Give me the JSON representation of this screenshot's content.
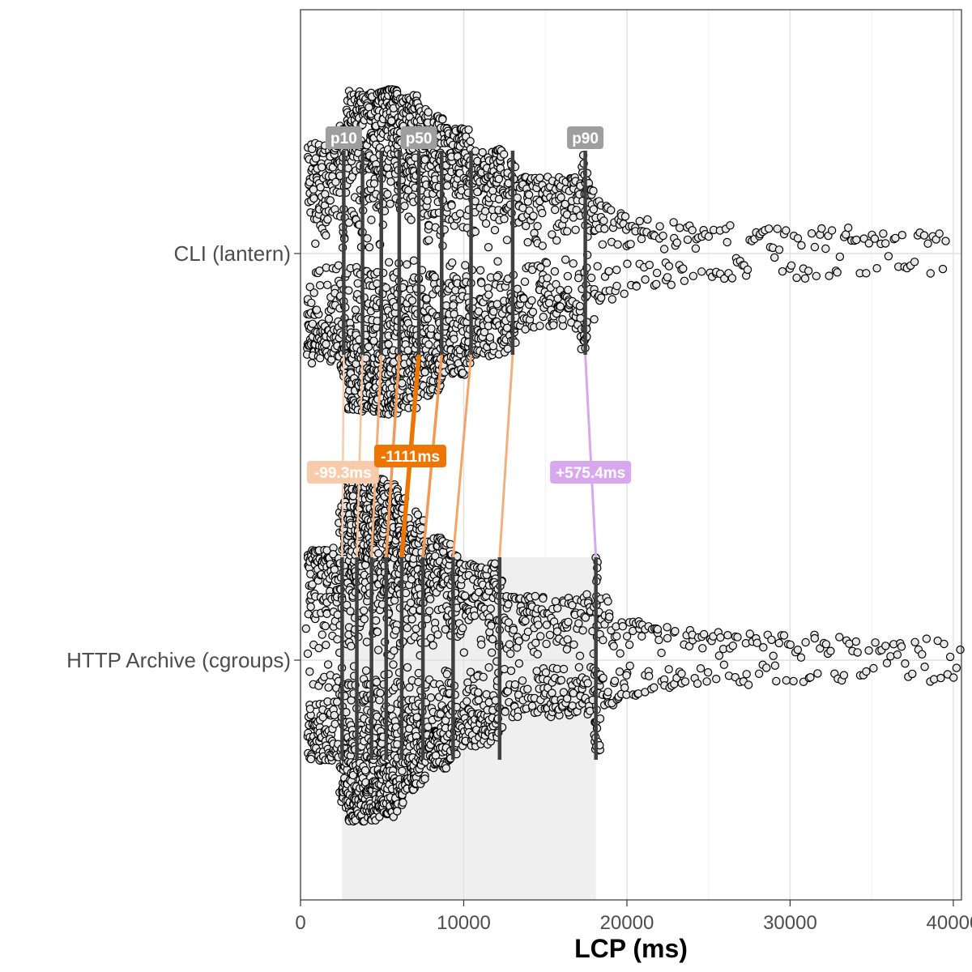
{
  "chart_data": {
    "type": "scatter",
    "subtype": "beeswarm",
    "xlabel": "LCP (ms)",
    "xlim": [
      0,
      40500
    ],
    "x_ticks": [
      0,
      10000,
      20000,
      30000,
      40000
    ],
    "x_tick_labels": [
      "0",
      "10000",
      "20000",
      "30000",
      "40000"
    ],
    "grid": true,
    "categories": [
      "CLI (lantern)",
      "HTTP Archive (cgroups)"
    ],
    "series": [
      {
        "category": "CLI (lantern)",
        "deciles": [
          2650,
          3800,
          4950,
          6050,
          7250,
          8650,
          10450,
          13000,
          17450
        ],
        "min": 400,
        "max": 39700
      },
      {
        "category": "HTTP Archive (cgroups)",
        "deciles": [
          2550,
          3450,
          4350,
          5250,
          6200,
          7500,
          9350,
          12200,
          18100
        ],
        "min": 400,
        "max": 40500
      }
    ],
    "percentile_labels": [
      {
        "text": "p10",
        "decile_index": 0
      },
      {
        "text": "p50",
        "decile_index": 4
      },
      {
        "text": "p90",
        "decile_index": 8
      }
    ],
    "differences": [
      {
        "text": "-99.3ms",
        "decile_index": 0,
        "color": "#f9cbaa"
      },
      {
        "text": "-1111ms",
        "decile_index": 4,
        "color": "#ee7600"
      },
      {
        "text": "+575.4ms",
        "decile_index": 8,
        "color": "#d8a8ee"
      }
    ],
    "connector_colors": [
      "#f9cbaa",
      "#f7c39a",
      "#f4ab75",
      "#f19a55",
      "#ee7600",
      "#f19a55",
      "#f2a46a",
      "#f4b07c",
      "#d8a8ee"
    ],
    "connector_widths": [
      2.5,
      2.5,
      3,
      3.5,
      5.5,
      3.5,
      3,
      3,
      3
    ],
    "shaded_range": {
      "category": "HTTP Archive (cgroups)",
      "from": 2550,
      "to": 18100,
      "color": "#efefef"
    },
    "point_fill": "#e8e8e8",
    "point_stroke": "#000000",
    "decile_line_color": "#404040",
    "badge_gray": "#9e9e9e"
  }
}
